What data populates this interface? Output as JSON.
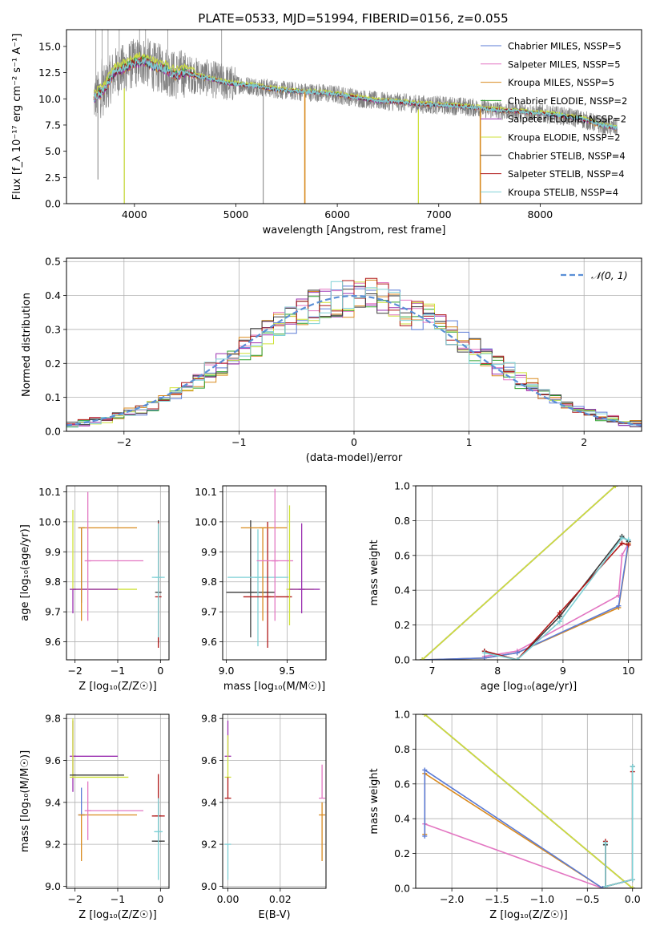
{
  "figure_title": "PLATE=0533, MJD=51994, FIBERID=0156, z=0.055",
  "colors": {
    "Chabrier MILES": "#5b7bd5",
    "Salpeter MILES": "#e377c2",
    "Kroupa MILES": "#d98a1f",
    "Chabrier ELODIE": "#2ca02c",
    "Salpeter ELODIE": "#9b30b0",
    "Kroupa ELODIE": "#cfe23a",
    "Chabrier STELIB": "#3a3a3a",
    "Salpeter STELIB": "#b01818",
    "Kroupa STELIB": "#7fd1d6",
    "data": "#808080",
    "normal": "#5a8fd6"
  },
  "chart_data": [
    {
      "id": "spectrum",
      "type": "line",
      "title": "PLATE=0533, MJD=51994, FIBERID=0156, z=0.055",
      "xlabel": "wavelength [Angstrom, rest frame]",
      "ylabel": "Flux [f_λ 10⁻¹⁷ erg cm⁻² s⁻¹ A⁻¹]",
      "xlim": [
        3330,
        9000
      ],
      "ylim": [
        0,
        16.6
      ],
      "xticks": [
        "4000",
        "5000",
        "6000",
        "7000",
        "8000"
      ],
      "yticks": [
        "0.0",
        "2.5",
        "5.0",
        "7.5",
        "10.0",
        "12.5",
        "15.0"
      ],
      "grid": false,
      "legend_position": "top-right",
      "legend": [
        "Chabrier MILES, NSSP=5",
        "Salpeter MILES, NSSP=5",
        "Kroupa MILES, NSSP=5",
        "Chabrier ELODIE, NSSP=2",
        "Salpeter ELODIE, NSSP=2",
        "Kroupa ELODIE, NSSP=2",
        "Chabrier STELIB, NSSP=4",
        "Salpeter STELIB, NSSP=4",
        "Kroupa STELIB, NSSP=4"
      ],
      "model_continuum": {
        "x": [
          3600,
          3700,
          3800,
          3900,
          4000,
          4100,
          4200,
          4300,
          4400,
          4500,
          4600,
          4700,
          4800,
          4900,
          5000,
          5200,
          5400,
          5600,
          5800,
          6000,
          6200,
          6400,
          6600,
          6800,
          7000,
          7200,
          7400,
          7600,
          7800,
          8000,
          8200,
          8400,
          8600,
          8760
        ],
        "y": [
          10.0,
          10.8,
          12.5,
          12.9,
          13.4,
          13.6,
          13.0,
          12.8,
          12.2,
          12.5,
          12.2,
          12.0,
          11.8,
          11.5,
          11.4,
          11.2,
          10.9,
          10.7,
          10.6,
          10.4,
          10.1,
          9.8,
          9.7,
          9.5,
          9.4,
          9.3,
          9.1,
          8.9,
          8.8,
          8.6,
          8.4,
          8.1,
          7.5,
          7.2
        ]
      },
      "data_dips": [
        {
          "x": 3640,
          "y": 2.3
        },
        {
          "x": 3900,
          "y": 0.0
        },
        {
          "x": 5270,
          "y": 0.0
        },
        {
          "x": 5680,
          "y": 0.0
        },
        {
          "x": 6800,
          "y": 0.0
        },
        {
          "x": 7410,
          "y": 0.0
        }
      ]
    },
    {
      "id": "residuals",
      "type": "step",
      "xlabel": "(data-model)/error",
      "ylabel": "Normed distribution",
      "xlim": [
        -2.5,
        2.5
      ],
      "ylim": [
        0,
        0.51
      ],
      "xticks": [
        "−2",
        "−1",
        "0",
        "1",
        "2"
      ],
      "yticks": [
        "0.0",
        "0.1",
        "0.2",
        "0.3",
        "0.4",
        "0.5"
      ],
      "grid": true,
      "legend_position": "top-right",
      "legend": [
        "𝒩(0, 1)"
      ]
    },
    {
      "id": "age-vs-Z",
      "type": "errorbar",
      "xlabel": "Z [log₁₀(Z/Z☉)]",
      "ylabel": "age  [log₁₀(age/yr)]",
      "xlim": [
        -2.2,
        0.2
      ],
      "ylim": [
        9.54,
        10.12
      ],
      "xticks": [
        "−2",
        "−1",
        "0"
      ],
      "yticks": [
        "9.6",
        "9.7",
        "9.8",
        "9.9",
        "10.0",
        "10.1"
      ],
      "grid": true
    },
    {
      "id": "age-vs-mass",
      "type": "errorbar",
      "xlabel": "mass [log₁₀(M/M☉)]",
      "ylabel": "",
      "xlim": [
        8.97,
        9.82
      ],
      "ylim": [
        9.54,
        10.12
      ],
      "xticks": [
        "9.0",
        "9.5"
      ],
      "yticks": [
        "9.6",
        "9.7",
        "9.8",
        "9.9",
        "10.0",
        "10.1"
      ],
      "grid": true
    },
    {
      "id": "weight-vs-age",
      "type": "line",
      "xlabel": "age  [log₁₀(age/yr)]",
      "ylabel": "mass weight",
      "xlim": [
        6.75,
        10.2
      ],
      "ylim": [
        0,
        1
      ],
      "xticks": [
        "7",
        "8",
        "9",
        "10"
      ],
      "yticks": [
        "0.0",
        "0.2",
        "0.4",
        "0.6",
        "0.8",
        "1.0"
      ],
      "grid": true,
      "series": [
        {
          "model": "Salpeter MILES",
          "x": [
            7.8,
            8.3,
            9.85,
            9.9,
            10.0
          ],
          "y": [
            0.02,
            0.05,
            0.37,
            0.6,
            0.67
          ]
        },
        {
          "model": "Kroupa MILES",
          "x": [
            6.85,
            7.8,
            8.3,
            9.85,
            10.0
          ],
          "y": [
            0.0,
            0.01,
            0.04,
            0.3,
            0.67
          ]
        },
        {
          "model": "Chabrier MILES",
          "x": [
            6.85,
            7.8,
            8.3,
            9.85,
            10.0
          ],
          "y": [
            0.0,
            0.01,
            0.04,
            0.31,
            0.68
          ]
        },
        {
          "model": "Chabrier ELODIE",
          "x": [
            6.85,
            9.8
          ],
          "y": [
            0.0,
            1.0
          ]
        },
        {
          "model": "Salpeter ELODIE",
          "x": [
            6.85,
            9.8
          ],
          "y": [
            0.0,
            1.0
          ]
        },
        {
          "model": "Kroupa ELODIE",
          "x": [
            6.85,
            9.8
          ],
          "y": [
            0.0,
            1.0
          ]
        },
        {
          "model": "Chabrier STELIB",
          "x": [
            7.8,
            8.3,
            8.95,
            9.9,
            10.0
          ],
          "y": [
            0.05,
            0.0,
            0.25,
            0.71,
            0.68
          ]
        },
        {
          "model": "Salpeter STELIB",
          "x": [
            7.8,
            8.3,
            8.95,
            9.9,
            10.0
          ],
          "y": [
            0.05,
            0.0,
            0.27,
            0.67,
            0.66
          ]
        },
        {
          "model": "Kroupa STELIB",
          "x": [
            7.8,
            8.3,
            8.95,
            9.9,
            10.0
          ],
          "y": [
            0.04,
            0.0,
            0.22,
            0.7,
            0.69
          ]
        }
      ]
    },
    {
      "id": "mass-vs-Z",
      "type": "errorbar",
      "xlabel": "Z [log₁₀(Z/Z☉)]",
      "ylabel": "mass [log₁₀(M/M☉)]",
      "xlim": [
        -2.2,
        0.2
      ],
      "ylim": [
        8.99,
        9.82
      ],
      "xticks": [
        "−2",
        "−1",
        "0"
      ],
      "yticks": [
        "9.0",
        "9.2",
        "9.4",
        "9.6",
        "9.8"
      ],
      "grid": true
    },
    {
      "id": "mass-vs-EBV",
      "type": "errorbar",
      "xlabel": "E(B-V)",
      "ylabel": "",
      "xlim": [
        -0.002,
        0.0375
      ],
      "ylim": [
        8.99,
        9.82
      ],
      "xticks": [
        "0.00",
        "0.02"
      ],
      "yticks": [
        "9.0",
        "9.2",
        "9.4",
        "9.6",
        "9.8"
      ],
      "grid": true
    },
    {
      "id": "weight-vs-Z",
      "type": "line",
      "xlabel": "Z [log₁₀(Z/Z☉)]",
      "ylabel": "mass weight",
      "xlim": [
        -2.4,
        0.1
      ],
      "ylim": [
        0,
        1
      ],
      "xticks": [
        "−2.0",
        "−1.5",
        "−1.0",
        "−0.5",
        "0.0"
      ],
      "yticks": [
        "0.0",
        "0.2",
        "0.4",
        "0.6",
        "0.8",
        "1.0"
      ],
      "grid": true,
      "series": [
        {
          "model": "Salpeter MILES",
          "x": [
            -2.3,
            -0.33,
            0.0
          ],
          "y": [
            0.37,
            0.0,
            0.0
          ]
        },
        {
          "model": "Kroupa MILES",
          "x": [
            -2.3,
            -2.3,
            -0.33,
            0.0,
            0.0
          ],
          "y": [
            0.31,
            0.66,
            0.0,
            0.0,
            0.0
          ]
        },
        {
          "model": "Chabrier MILES",
          "x": [
            -2.3,
            -2.3,
            -0.33,
            0.0
          ],
          "y": [
            0.3,
            0.68,
            0.0,
            0.0
          ]
        },
        {
          "model": "Chabrier ELODIE",
          "x": [
            -2.3,
            0.0
          ],
          "y": [
            1.0,
            0.0
          ]
        },
        {
          "model": "Salpeter ELODIE",
          "x": [
            -2.3,
            0.0
          ],
          "y": [
            1.0,
            0.0
          ]
        },
        {
          "model": "Kroupa ELODIE",
          "x": [
            -2.3,
            0.0
          ],
          "y": [
            1.0,
            0.0
          ]
        },
        {
          "model": "Chabrier STELIB",
          "x": [
            -0.3,
            -0.3,
            0.0,
            0.0
          ],
          "y": [
            0.25,
            0.01,
            0.05,
            0.7
          ]
        },
        {
          "model": "Salpeter STELIB",
          "x": [
            -0.3,
            -0.3,
            0.0,
            0.0
          ],
          "y": [
            0.27,
            0.01,
            0.05,
            0.67
          ]
        },
        {
          "model": "Kroupa STELIB",
          "x": [
            -0.3,
            -0.3,
            0.0,
            0.0
          ],
          "y": [
            0.26,
            0.01,
            0.05,
            0.7
          ]
        }
      ]
    }
  ],
  "errorbars": {
    "age_Z": [
      {
        "model": "Kroupa ELODIE",
        "x": -2.05,
        "xerr": [
          0.0,
          1.5
        ],
        "y": 9.775,
        "yerr": [
          0.0,
          0.265
        ]
      },
      {
        "model": "Salpeter ELODIE",
        "x": -2.05,
        "xerr": [
          0.0,
          1.05
        ],
        "y": 9.775,
        "yerr": [
          0.08,
          0.0
        ]
      },
      {
        "model": "Chabrier MILES",
        "x": -1.85,
        "xerr": [
          0.0,
          0.0
        ],
        "y": 9.98,
        "yerr": [
          0.25,
          0.0
        ]
      },
      {
        "model": "Kroupa MILES",
        "x": -1.85,
        "xerr": [
          0.0,
          1.3
        ],
        "y": 9.98,
        "yerr": [
          0.31,
          0.0
        ]
      },
      {
        "model": "Salpeter MILES",
        "x": -1.7,
        "xerr": [
          0.0,
          1.3
        ],
        "y": 9.87,
        "yerr": [
          0.2,
          0.23
        ]
      },
      {
        "model": "Chabrier STELIB",
        "x": -0.05,
        "xerr": [
          0.0,
          0.0
        ],
        "y": 9.765,
        "yerr": [
          0.17,
          0.24
        ]
      },
      {
        "model": "Salpeter STELIB",
        "x": -0.05,
        "xerr": [
          0.0,
          0.0
        ],
        "y": 9.75,
        "yerr": [
          0.17,
          0.25
        ]
      },
      {
        "model": "Kroupa STELIB",
        "x": -0.05,
        "xerr": [
          0.15,
          0.15
        ],
        "y": 9.815,
        "yerr": [
          0.2,
          0.18
        ]
      }
    ],
    "age_mass": [
      {
        "model": "Chabrier STELIB",
        "x": 9.2,
        "xerr": [
          0.2,
          0.2
        ],
        "y": 9.765,
        "yerr": [
          0.15,
          0.24
        ]
      },
      {
        "model": "Kroupa STELIB",
        "x": 9.26,
        "xerr": [
          0.25,
          0.25
        ],
        "y": 9.815,
        "yerr": [
          0.23,
          0.16
        ]
      },
      {
        "model": "Salpeter STELIB",
        "x": 9.34,
        "xerr": [
          0.2,
          0.2
        ],
        "y": 9.75,
        "yerr": [
          0.17,
          0.25
        ]
      },
      {
        "model": "Kroupa MILES",
        "x": 9.3,
        "xerr": [
          0.18,
          0.2
        ],
        "y": 9.98,
        "yerr": [
          0.31,
          0.0
        ]
      },
      {
        "model": "Salpeter MILES",
        "x": 9.4,
        "xerr": [
          0.15,
          0.15
        ],
        "y": 9.87,
        "yerr": [
          0.2,
          0.24
        ]
      },
      {
        "model": "Kroupa ELODIE",
        "x": 9.52,
        "xerr": [
          0.0,
          0.2
        ],
        "y": 9.775,
        "yerr": [
          0.12,
          0.28
        ]
      },
      {
        "model": "Salpeter ELODIE",
        "x": 9.62,
        "xerr": [
          0.1,
          0.15
        ],
        "y": 9.775,
        "yerr": [
          0.08,
          0.22
        ]
      }
    ],
    "mass_Z": [
      {
        "model": "Salpeter ELODIE",
        "x": -2.05,
        "xerr": [
          0.0,
          1.05
        ],
        "y": 9.62,
        "yerr": [
          0.17,
          0.17
        ]
      },
      {
        "model": "Kroupa ELODIE",
        "x": -2.05,
        "xerr": [
          0.0,
          1.3
        ],
        "y": 9.52,
        "yerr": [
          0.0,
          0.28
        ]
      },
      {
        "model": "Chabrier STELIB",
        "x": -2.05,
        "xerr": [
          0.0,
          1.2
        ],
        "y": 9.53,
        "yerr": [
          0.0,
          0.0
        ]
      },
      {
        "model": "Chabrier MILES",
        "x": -1.85,
        "xerr": [
          0.0,
          0.0
        ],
        "y": 9.34,
        "yerr": [
          0.0,
          0.13
        ]
      },
      {
        "model": "Kroupa MILES",
        "x": -1.85,
        "xerr": [
          0.0,
          1.3
        ],
        "y": 9.34,
        "yerr": [
          0.22,
          0.0
        ]
      },
      {
        "model": "Salpeter MILES",
        "x": -1.7,
        "xerr": [
          0.0,
          1.3
        ],
        "y": 9.36,
        "yerr": [
          0.14,
          0.14
        ]
      },
      {
        "model": "Salpeter STELIB",
        "x": -0.05,
        "xerr": [
          0.15,
          0.15
        ],
        "y": 9.335,
        "yerr": [
          0.0,
          0.2
        ]
      },
      {
        "model": "Chabrier STELIB",
        "x": -0.05,
        "xerr": [
          0.15,
          0.15
        ],
        "y": 9.215,
        "yerr": [
          0.0,
          0.18
        ]
      },
      {
        "model": "Kroupa STELIB",
        "x": -0.05,
        "xerr": [
          0.1,
          0.1
        ],
        "y": 9.26,
        "yerr": [
          0.23,
          0.16
        ]
      }
    ],
    "mass_EBV": [
      {
        "model": "Salpeter ELODIE",
        "x": 0.0,
        "xerr": [
          0.0,
          0.0
        ],
        "y": 9.62,
        "yerr": [
          0.0,
          0.17
        ]
      },
      {
        "model": "Kroupa ELODIE",
        "x": 0.0,
        "xerr": [
          0.0,
          0.0
        ],
        "y": 9.52,
        "yerr": [
          0.0,
          0.2
        ]
      },
      {
        "model": "Salpeter STELIB",
        "x": 0.0,
        "xerr": [
          0.0,
          0.0
        ],
        "y": 9.42,
        "yerr": [
          0.0,
          0.1
        ]
      },
      {
        "model": "Kroupa STELIB",
        "x": 0.0,
        "xerr": [
          0.0,
          0.0
        ],
        "y": 9.2,
        "yerr": [
          0.17,
          0.0
        ]
      },
      {
        "model": "Kroupa MILES",
        "x": 0.036,
        "xerr": [
          0.0,
          0.0
        ],
        "y": 9.34,
        "yerr": [
          0.22,
          0.06
        ]
      },
      {
        "model": "Salpeter MILES",
        "x": 0.036,
        "xerr": [
          0.0,
          0.0
        ],
        "y": 9.42,
        "yerr": [
          0.0,
          0.16
        ]
      }
    ]
  }
}
